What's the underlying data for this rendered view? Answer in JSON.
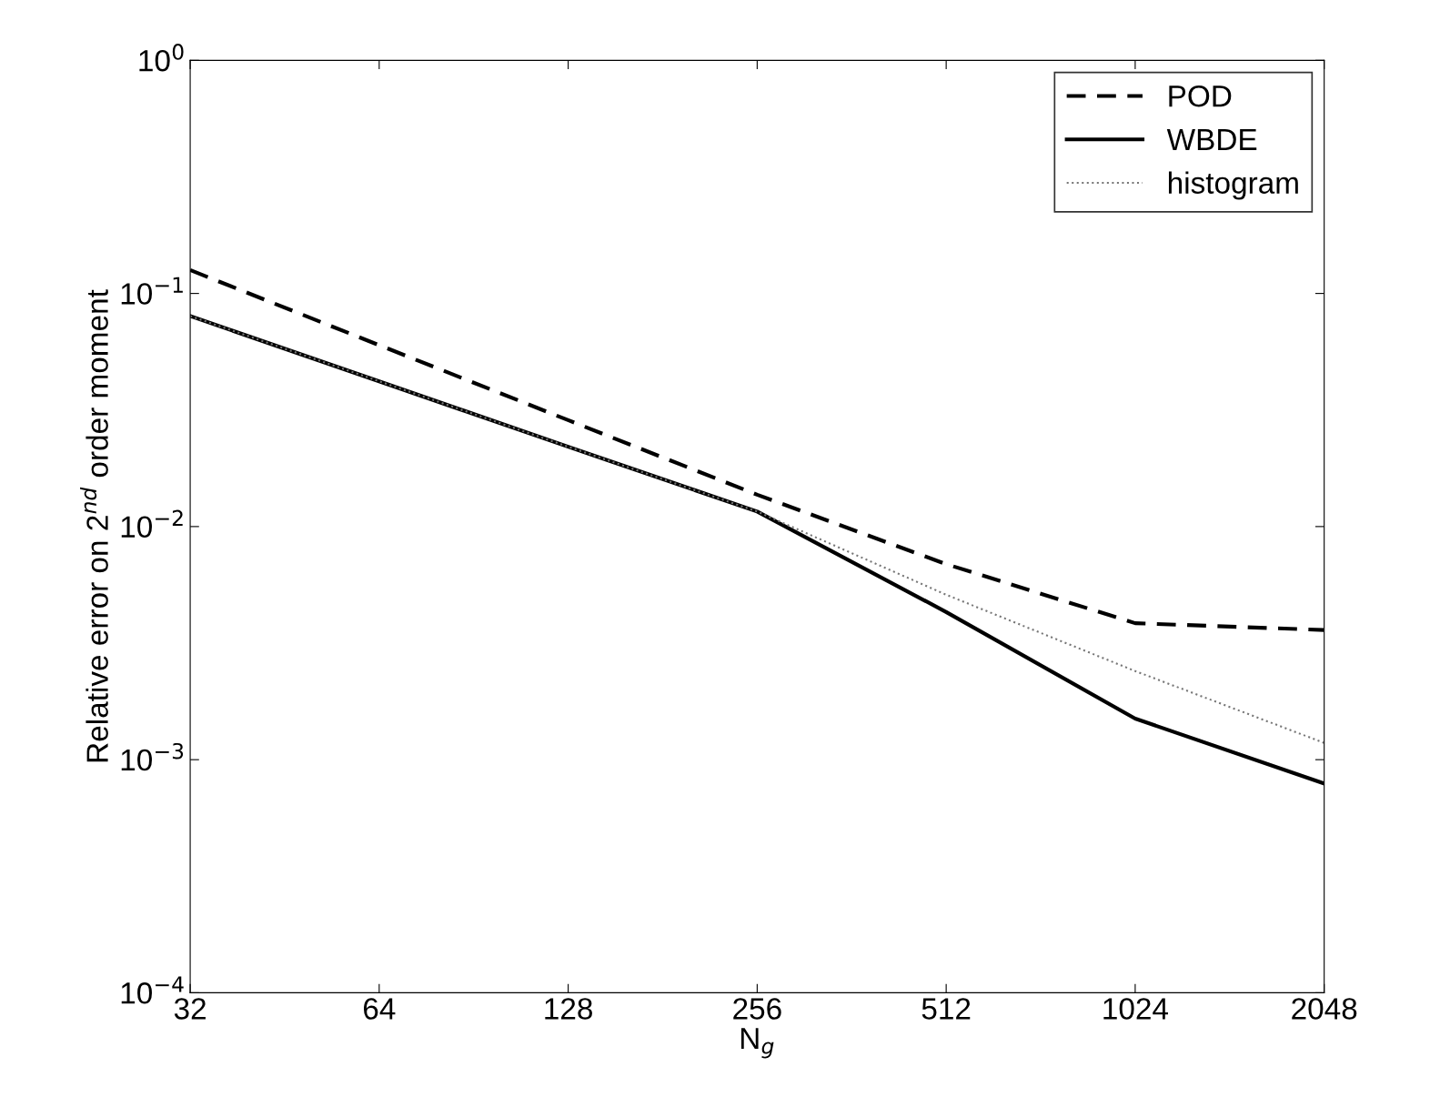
{
  "chart_data": {
    "type": "line",
    "xlabel": "N$_{g}$",
    "ylabel": "Relative error on 2$^{nd}$ order moment",
    "x": [
      32,
      64,
      128,
      256,
      512,
      1024,
      2048
    ],
    "series": [
      {
        "name": "POD",
        "color": "#000000",
        "line_style": "dashed",
        "values": [
          0.126,
          0.06,
          0.0286,
          0.0137,
          0.0069,
          0.00385,
          0.0036
        ]
      },
      {
        "name": "WBDE",
        "color": "#000000",
        "line_style": "solid",
        "values": [
          0.08,
          0.042,
          0.022,
          0.0116,
          0.0043,
          0.0015,
          0.00079
        ]
      },
      {
        "name": "histogram",
        "color": "#777777",
        "line_style": "dotted",
        "values": [
          0.08,
          0.042,
          0.022,
          0.0116,
          0.0051,
          0.0024,
          0.00118
        ]
      }
    ],
    "log": "xy",
    "xlim": [
      32,
      2048
    ],
    "ylim": [
      0.0001,
      1
    ],
    "xticks": [
      32,
      64,
      128,
      256,
      512,
      1024,
      2048
    ],
    "yticks": [
      {
        "value": 0.0001,
        "label": "10$^{−4}$"
      },
      {
        "value": 0.001,
        "label": "10$^{−3}$"
      },
      {
        "value": 0.01,
        "label": "10$^{−2}$"
      },
      {
        "value": 0.1,
        "label": "10$^{−1}$"
      },
      {
        "value": 1,
        "label": "10$^{0}$"
      }
    ],
    "grid": false,
    "legend": "top right",
    "marker": "none"
  }
}
